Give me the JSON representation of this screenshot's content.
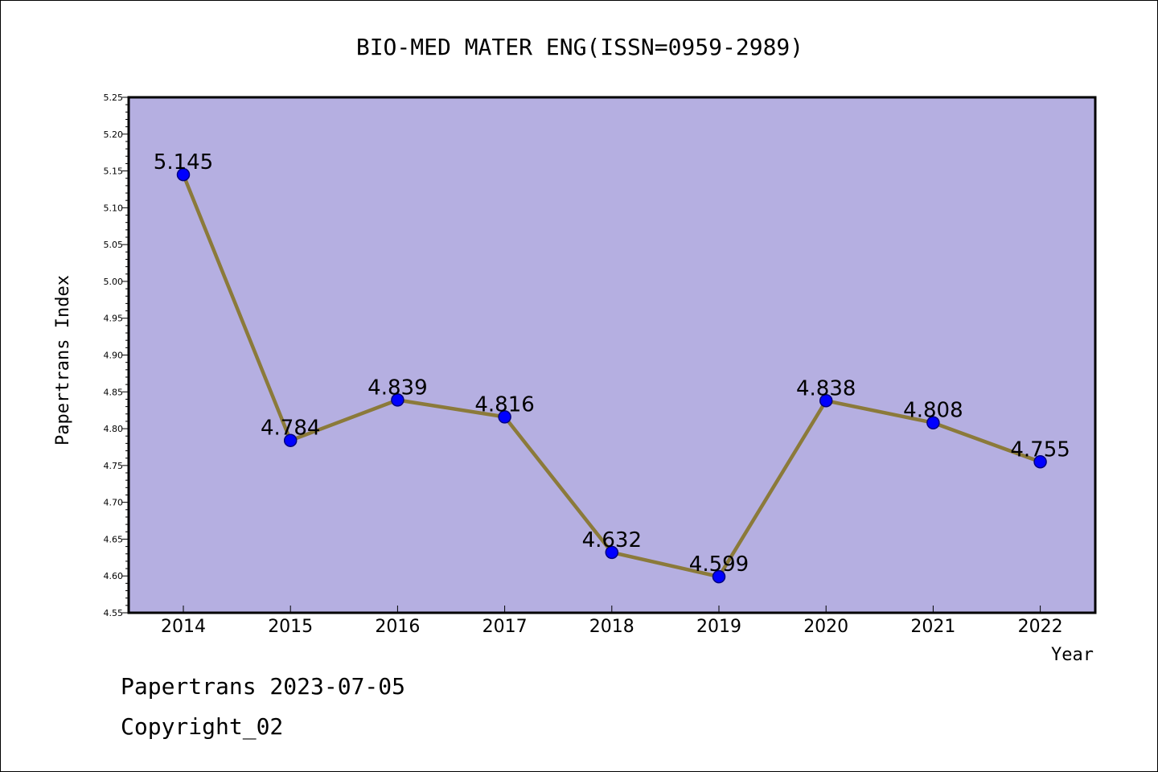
{
  "chart_data": {
    "type": "line",
    "title": "BIO-MED MATER ENG(ISSN=0959-2989)",
    "xlabel": "Year",
    "ylabel": "Papertrans Index",
    "categories": [
      "2014",
      "2015",
      "2016",
      "2017",
      "2018",
      "2019",
      "2020",
      "2021",
      "2022"
    ],
    "series": [
      {
        "values": [
          5.145,
          4.784,
          4.839,
          4.816,
          4.632,
          4.599,
          4.838,
          4.808,
          4.755
        ],
        "labels": [
          "5.145",
          "4.784",
          "4.839",
          "4.816",
          "4.632",
          "4.599",
          "4.838",
          "4.808",
          "4.755"
        ]
      }
    ],
    "ylim": [
      4.55,
      5.25
    ],
    "yticks": [
      "4.55",
      "4.60",
      "4.65",
      "4.70",
      "4.75",
      "4.80",
      "4.85",
      "4.90",
      "4.95",
      "5.00",
      "5.05",
      "5.10",
      "5.15",
      "5.20",
      "5.25"
    ],
    "grid": false,
    "colors": {
      "plot_background": "#b5afe1",
      "line": "#8b7a3a",
      "marker_fill": "#0000ff",
      "marker_stroke": "#000080"
    }
  },
  "footer": {
    "date_line": "Papertrans 2023-07-05",
    "copyright": "Copyright_02"
  }
}
